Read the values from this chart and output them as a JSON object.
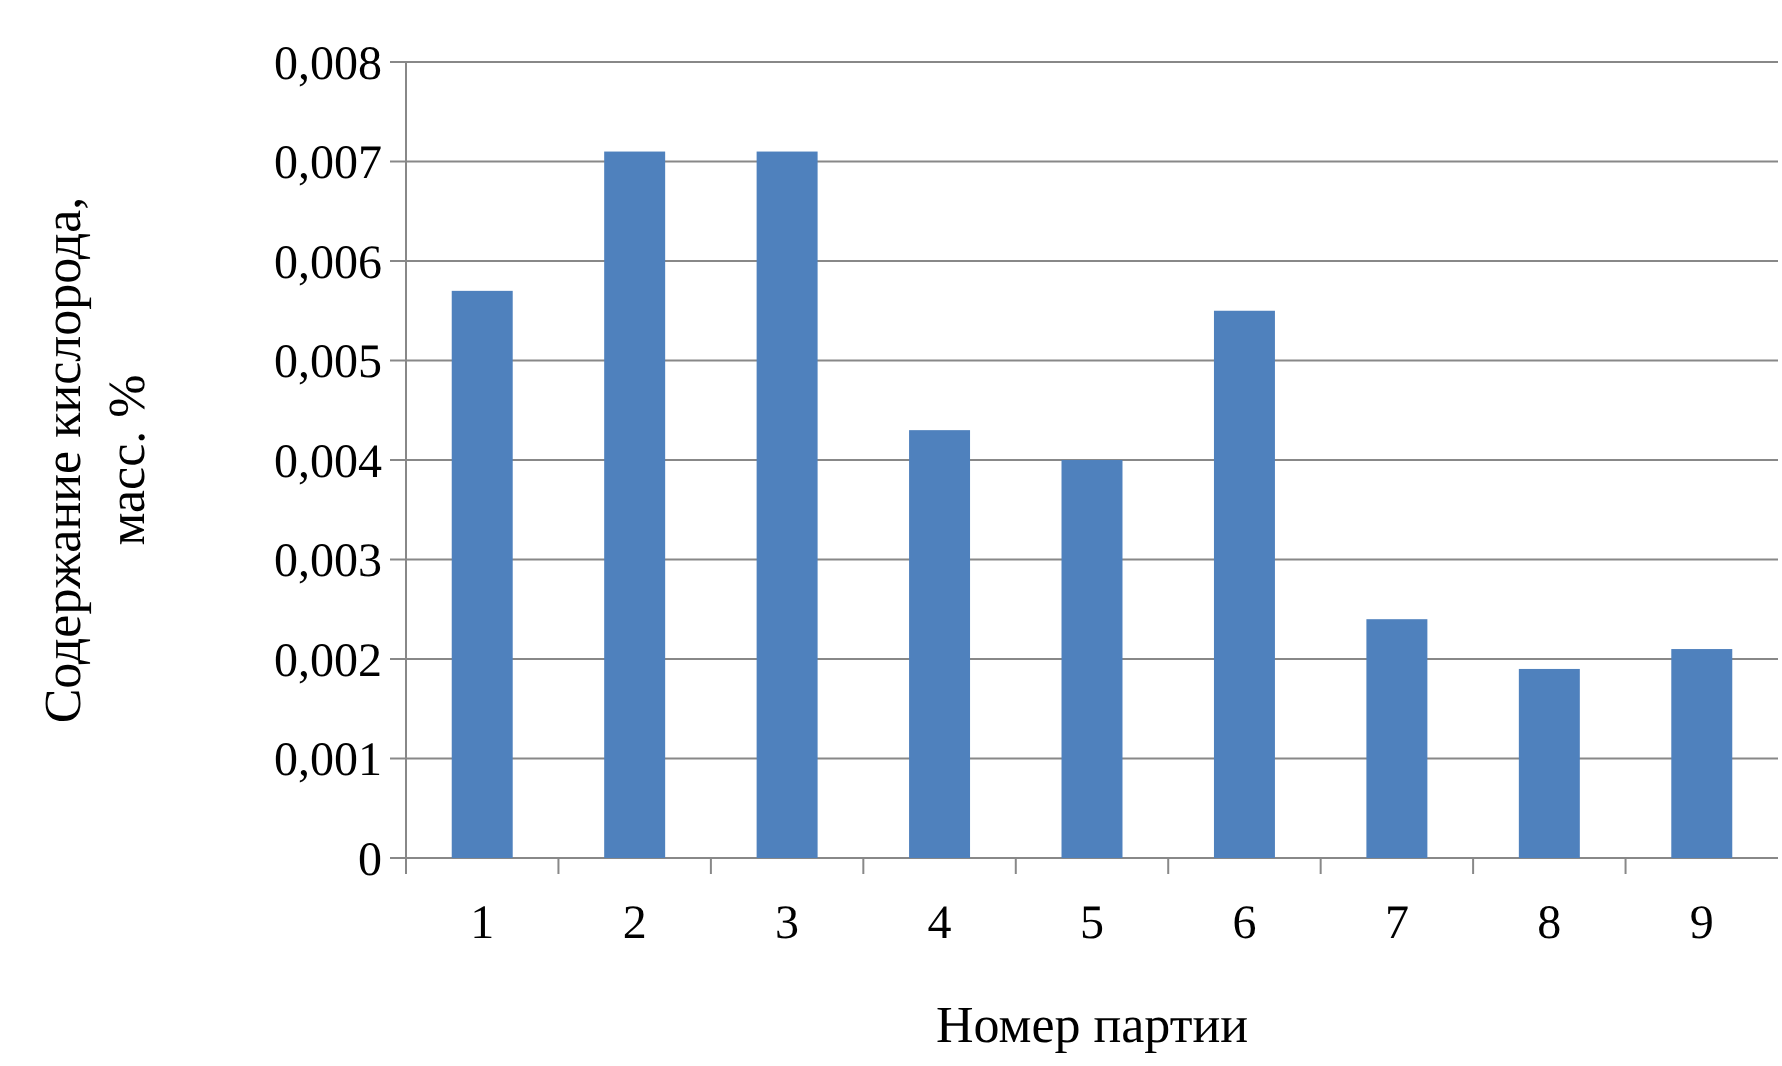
{
  "chart_data": {
    "type": "bar",
    "xlabel": "Номер партии",
    "ylabel": "Содержание кислорода,\nмасс. %",
    "categories": [
      "1",
      "2",
      "3",
      "4",
      "5",
      "6",
      "7",
      "8",
      "9"
    ],
    "values": [
      0.0057,
      0.0071,
      0.0071,
      0.0043,
      0.004,
      0.0055,
      0.0024,
      0.0019,
      0.0021
    ],
    "color": "#4f81bd",
    "ylim": [
      0,
      0.008
    ],
    "yticks": [
      {
        "value": 0,
        "label": "0"
      },
      {
        "value": 0.001,
        "label": "0,001"
      },
      {
        "value": 0.002,
        "label": "0,002"
      },
      {
        "value": 0.003,
        "label": "0,003"
      },
      {
        "value": 0.004,
        "label": "0,004"
      },
      {
        "value": 0.005,
        "label": "0,005"
      },
      {
        "value": 0.006,
        "label": "0,006"
      },
      {
        "value": 0.007,
        "label": "0,007"
      },
      {
        "value": 0.008,
        "label": "0,008"
      }
    ],
    "grid": "y"
  }
}
